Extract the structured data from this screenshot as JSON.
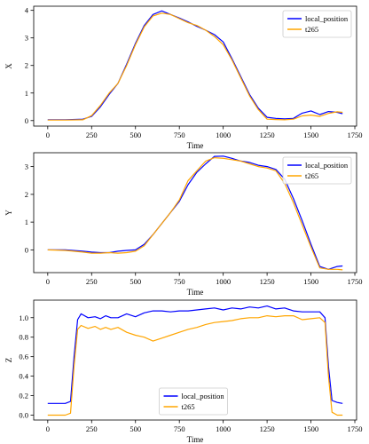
{
  "chart_data": [
    {
      "type": "line",
      "xlabel": "Time",
      "ylabel": "X",
      "xlim": [
        -80,
        1760
      ],
      "ylim": [
        -0.2,
        4.15
      ],
      "xticks": [
        0,
        250,
        500,
        750,
        1000,
        1250,
        1500,
        1750
      ],
      "yticks": [
        0,
        1,
        2,
        3,
        4
      ],
      "legend_position": "top-right",
      "grid": false,
      "series": [
        {
          "name": "local_position",
          "color": "#0000ff",
          "points": [
            [
              0,
              0.03
            ],
            [
              100,
              0.03
            ],
            [
              200,
              0.05
            ],
            [
              250,
              0.15
            ],
            [
              300,
              0.5
            ],
            [
              350,
              0.95
            ],
            [
              400,
              1.35
            ],
            [
              450,
              2.05
            ],
            [
              500,
              2.8
            ],
            [
              550,
              3.45
            ],
            [
              600,
              3.85
            ],
            [
              650,
              3.98
            ],
            [
              700,
              3.85
            ],
            [
              750,
              3.72
            ],
            [
              800,
              3.58
            ],
            [
              850,
              3.42
            ],
            [
              900,
              3.28
            ],
            [
              950,
              3.12
            ],
            [
              1000,
              2.85
            ],
            [
              1050,
              2.25
            ],
            [
              1100,
              1.6
            ],
            [
              1150,
              0.95
            ],
            [
              1200,
              0.45
            ],
            [
              1250,
              0.12
            ],
            [
              1300,
              0.08
            ],
            [
              1350,
              0.06
            ],
            [
              1400,
              0.08
            ],
            [
              1450,
              0.27
            ],
            [
              1500,
              0.35
            ],
            [
              1550,
              0.22
            ],
            [
              1600,
              0.33
            ],
            [
              1650,
              0.3
            ],
            [
              1680,
              0.25
            ]
          ]
        },
        {
          "name": "t265",
          "color": "#ffa500",
          "points": [
            [
              0,
              0.02
            ],
            [
              100,
              0.02
            ],
            [
              200,
              0.03
            ],
            [
              250,
              0.18
            ],
            [
              300,
              0.55
            ],
            [
              350,
              1.0
            ],
            [
              400,
              1.35
            ],
            [
              450,
              2.0
            ],
            [
              500,
              2.75
            ],
            [
              550,
              3.4
            ],
            [
              600,
              3.8
            ],
            [
              650,
              3.9
            ],
            [
              700,
              3.85
            ],
            [
              750,
              3.7
            ],
            [
              800,
              3.55
            ],
            [
              850,
              3.45
            ],
            [
              900,
              3.28
            ],
            [
              950,
              3.05
            ],
            [
              1000,
              2.75
            ],
            [
              1050,
              2.2
            ],
            [
              1100,
              1.55
            ],
            [
              1150,
              0.9
            ],
            [
              1200,
              0.4
            ],
            [
              1250,
              0.05
            ],
            [
              1300,
              0.04
            ],
            [
              1350,
              0.03
            ],
            [
              1400,
              0.05
            ],
            [
              1450,
              0.17
            ],
            [
              1500,
              0.2
            ],
            [
              1550,
              0.15
            ],
            [
              1600,
              0.26
            ],
            [
              1650,
              0.32
            ],
            [
              1680,
              0.3
            ]
          ]
        }
      ]
    },
    {
      "type": "line",
      "xlabel": "Time",
      "ylabel": "Y",
      "xlim": [
        -80,
        1760
      ],
      "ylim": [
        -0.82,
        3.5
      ],
      "xticks": [
        0,
        250,
        500,
        750,
        1000,
        1250,
        1500,
        1750
      ],
      "yticks": [
        0,
        1,
        2,
        3
      ],
      "legend_position": "top-right",
      "grid": false,
      "series": [
        {
          "name": "local_position",
          "color": "#0000ff",
          "points": [
            [
              0,
              0.0
            ],
            [
              100,
              0.0
            ],
            [
              200,
              -0.05
            ],
            [
              250,
              -0.08
            ],
            [
              300,
              -0.1
            ],
            [
              350,
              -0.1
            ],
            [
              400,
              -0.05
            ],
            [
              450,
              -0.02
            ],
            [
              500,
              0.0
            ],
            [
              550,
              0.2
            ],
            [
              600,
              0.55
            ],
            [
              650,
              0.95
            ],
            [
              700,
              1.35
            ],
            [
              750,
              1.75
            ],
            [
              800,
              2.35
            ],
            [
              850,
              2.8
            ],
            [
              900,
              3.1
            ],
            [
              950,
              3.37
            ],
            [
              1000,
              3.38
            ],
            [
              1050,
              3.3
            ],
            [
              1100,
              3.2
            ],
            [
              1150,
              3.15
            ],
            [
              1200,
              3.05
            ],
            [
              1250,
              3.0
            ],
            [
              1300,
              2.9
            ],
            [
              1350,
              2.55
            ],
            [
              1400,
              1.85
            ],
            [
              1450,
              1.05
            ],
            [
              1500,
              0.2
            ],
            [
              1550,
              -0.6
            ],
            [
              1600,
              -0.7
            ],
            [
              1650,
              -0.6
            ],
            [
              1680,
              -0.58
            ]
          ]
        },
        {
          "name": "t265",
          "color": "#ffa500",
          "points": [
            [
              0,
              0.0
            ],
            [
              100,
              -0.02
            ],
            [
              200,
              -0.08
            ],
            [
              250,
              -0.12
            ],
            [
              300,
              -0.12
            ],
            [
              350,
              -0.1
            ],
            [
              400,
              -0.12
            ],
            [
              450,
              -0.1
            ],
            [
              500,
              -0.05
            ],
            [
              550,
              0.15
            ],
            [
              600,
              0.55
            ],
            [
              650,
              0.95
            ],
            [
              700,
              1.35
            ],
            [
              750,
              1.8
            ],
            [
              800,
              2.5
            ],
            [
              850,
              2.85
            ],
            [
              900,
              3.2
            ],
            [
              950,
              3.32
            ],
            [
              1000,
              3.3
            ],
            [
              1050,
              3.25
            ],
            [
              1100,
              3.2
            ],
            [
              1150,
              3.1
            ],
            [
              1200,
              3.0
            ],
            [
              1250,
              2.95
            ],
            [
              1300,
              2.85
            ],
            [
              1350,
              2.4
            ],
            [
              1400,
              1.7
            ],
            [
              1450,
              0.9
            ],
            [
              1500,
              0.1
            ],
            [
              1550,
              -0.65
            ],
            [
              1600,
              -0.7
            ],
            [
              1650,
              -0.7
            ],
            [
              1680,
              -0.72
            ]
          ]
        }
      ]
    },
    {
      "type": "line",
      "xlabel": "Time",
      "ylabel": "Z",
      "xlim": [
        -80,
        1760
      ],
      "ylim": [
        -0.05,
        1.18
      ],
      "xticks": [
        0,
        250,
        500,
        750,
        1000,
        1250,
        1500,
        1750
      ],
      "yticks": [
        0.0,
        0.2,
        0.4,
        0.6,
        0.8,
        1.0
      ],
      "legend_position": "bottom-center",
      "grid": false,
      "series": [
        {
          "name": "local_position",
          "color": "#0000ff",
          "points": [
            [
              0,
              0.12
            ],
            [
              50,
              0.12
            ],
            [
              100,
              0.12
            ],
            [
              130,
              0.14
            ],
            [
              150,
              0.6
            ],
            [
              170,
              0.98
            ],
            [
              190,
              1.04
            ],
            [
              230,
              1.0
            ],
            [
              270,
              1.01
            ],
            [
              300,
              0.99
            ],
            [
              330,
              1.02
            ],
            [
              360,
              1.0
            ],
            [
              400,
              1.0
            ],
            [
              450,
              1.04
            ],
            [
              500,
              1.01
            ],
            [
              550,
              1.05
            ],
            [
              600,
              1.07
            ],
            [
              650,
              1.07
            ],
            [
              700,
              1.06
            ],
            [
              750,
              1.07
            ],
            [
              800,
              1.07
            ],
            [
              850,
              1.08
            ],
            [
              900,
              1.09
            ],
            [
              950,
              1.1
            ],
            [
              1000,
              1.08
            ],
            [
              1050,
              1.1
            ],
            [
              1100,
              1.09
            ],
            [
              1150,
              1.11
            ],
            [
              1200,
              1.1
            ],
            [
              1250,
              1.12
            ],
            [
              1300,
              1.09
            ],
            [
              1350,
              1.1
            ],
            [
              1400,
              1.07
            ],
            [
              1450,
              1.06
            ],
            [
              1500,
              1.06
            ],
            [
              1550,
              1.06
            ],
            [
              1580,
              1.0
            ],
            [
              1600,
              0.5
            ],
            [
              1620,
              0.15
            ],
            [
              1650,
              0.13
            ],
            [
              1680,
              0.12
            ]
          ]
        },
        {
          "name": "t265",
          "color": "#ffa500",
          "points": [
            [
              0,
              0.0
            ],
            [
              50,
              0.0
            ],
            [
              100,
              0.0
            ],
            [
              130,
              0.02
            ],
            [
              150,
              0.5
            ],
            [
              170,
              0.88
            ],
            [
              190,
              0.92
            ],
            [
              230,
              0.89
            ],
            [
              270,
              0.91
            ],
            [
              300,
              0.88
            ],
            [
              330,
              0.9
            ],
            [
              360,
              0.88
            ],
            [
              400,
              0.9
            ],
            [
              450,
              0.85
            ],
            [
              500,
              0.82
            ],
            [
              550,
              0.8
            ],
            [
              600,
              0.76
            ],
            [
              650,
              0.79
            ],
            [
              700,
              0.82
            ],
            [
              750,
              0.85
            ],
            [
              800,
              0.88
            ],
            [
              850,
              0.9
            ],
            [
              900,
              0.93
            ],
            [
              950,
              0.95
            ],
            [
              1000,
              0.96
            ],
            [
              1050,
              0.97
            ],
            [
              1100,
              0.99
            ],
            [
              1150,
              1.0
            ],
            [
              1200,
              1.0
            ],
            [
              1250,
              1.02
            ],
            [
              1300,
              1.01
            ],
            [
              1350,
              1.02
            ],
            [
              1400,
              1.02
            ],
            [
              1450,
              0.98
            ],
            [
              1500,
              0.99
            ],
            [
              1550,
              1.0
            ],
            [
              1580,
              0.95
            ],
            [
              1600,
              0.4
            ],
            [
              1620,
              0.03
            ],
            [
              1650,
              0.0
            ],
            [
              1680,
              0.0
            ]
          ]
        }
      ]
    }
  ]
}
